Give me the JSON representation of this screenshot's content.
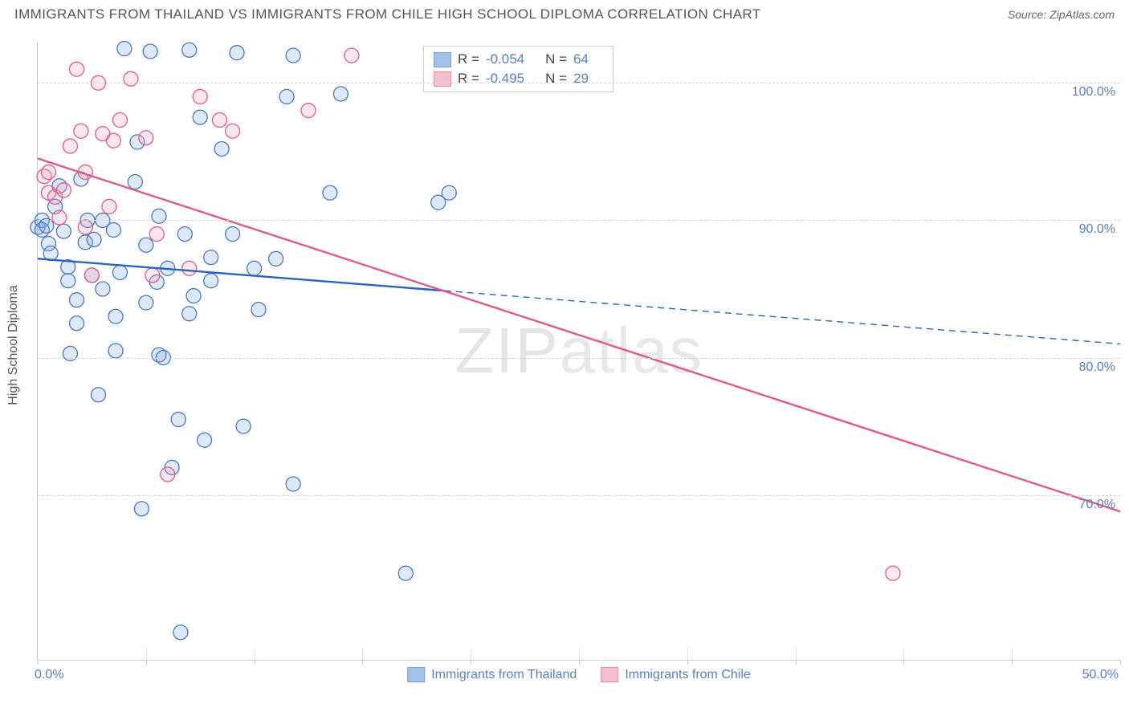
{
  "title": "IMMIGRANTS FROM THAILAND VS IMMIGRANTS FROM CHILE HIGH SCHOOL DIPLOMA CORRELATION CHART",
  "source_label": "Source: ",
  "source_name": "ZipAtlas.com",
  "y_axis_label": "High School Diploma",
  "watermark": "ZIPatlas",
  "chart": {
    "type": "scatter",
    "xlim": [
      0,
      50
    ],
    "ylim": [
      58,
      103
    ],
    "y_gridlines": [
      70,
      80,
      90,
      100
    ],
    "y_tick_labels": [
      "70.0%",
      "80.0%",
      "90.0%",
      "100.0%"
    ],
    "x_ticks_minor": [
      0,
      5,
      10,
      15,
      20,
      25,
      30,
      35,
      40,
      45,
      50
    ],
    "x_tick_labels": {
      "0": "0.0%",
      "50": "50.0%"
    },
    "grid_color": "#d5d5d5",
    "axis_color": "#cccccc",
    "tick_label_color": "#5b7fbb",
    "background_color": "#ffffff",
    "marker_radius": 9,
    "marker_stroke_width": 1.3,
    "marker_fill_opacity": 0.25,
    "line_width": 2.4
  },
  "series": [
    {
      "name": "Immigrants from Thailand",
      "fill_color": "#7da6e3",
      "stroke_color": "#4a78c2",
      "line_color": "#2b63c0",
      "R": "-0.054",
      "N": "64",
      "regression": {
        "x1": 0,
        "y1": 87.2,
        "x2": 50,
        "y2": 81.0,
        "solid_until_x": 18.8
      },
      "points": [
        [
          0.0,
          89.5
        ],
        [
          0.2,
          90.0
        ],
        [
          0.2,
          89.3
        ],
        [
          0.4,
          89.6
        ],
        [
          0.5,
          88.3
        ],
        [
          0.6,
          87.6
        ],
        [
          0.8,
          91.0
        ],
        [
          1.0,
          92.5
        ],
        [
          1.2,
          89.2
        ],
        [
          1.4,
          86.6
        ],
        [
          1.4,
          85.6
        ],
        [
          1.5,
          80.3
        ],
        [
          1.8,
          84.2
        ],
        [
          1.8,
          82.5
        ],
        [
          2.0,
          93.0
        ],
        [
          2.2,
          88.4
        ],
        [
          2.3,
          90.0
        ],
        [
          2.5,
          86.0
        ],
        [
          2.6,
          88.6
        ],
        [
          2.8,
          77.3
        ],
        [
          3.0,
          85.0
        ],
        [
          3.0,
          90.0
        ],
        [
          3.5,
          89.3
        ],
        [
          3.6,
          83.0
        ],
        [
          3.6,
          80.5
        ],
        [
          3.8,
          86.2
        ],
        [
          4.0,
          102.5
        ],
        [
          4.5,
          92.8
        ],
        [
          4.6,
          95.7
        ],
        [
          4.8,
          69.0
        ],
        [
          5.0,
          84.0
        ],
        [
          5.0,
          88.2
        ],
        [
          5.2,
          102.3
        ],
        [
          5.5,
          85.5
        ],
        [
          5.6,
          90.3
        ],
        [
          5.6,
          80.2
        ],
        [
          5.8,
          80.0
        ],
        [
          6.0,
          86.5
        ],
        [
          6.2,
          72.0
        ],
        [
          6.5,
          75.5
        ],
        [
          6.6,
          60.0
        ],
        [
          6.8,
          89.0
        ],
        [
          7.0,
          102.4
        ],
        [
          7.0,
          83.2
        ],
        [
          7.2,
          84.5
        ],
        [
          7.5,
          97.5
        ],
        [
          7.7,
          74.0
        ],
        [
          8.0,
          87.3
        ],
        [
          8.0,
          85.6
        ],
        [
          8.5,
          95.2
        ],
        [
          9.0,
          89.0
        ],
        [
          9.2,
          102.2
        ],
        [
          9.5,
          75.0
        ],
        [
          10.0,
          86.5
        ],
        [
          10.2,
          83.5
        ],
        [
          11.0,
          87.2
        ],
        [
          11.8,
          102.0
        ],
        [
          11.5,
          99.0
        ],
        [
          11.8,
          70.8
        ],
        [
          13.5,
          92.0
        ],
        [
          14.0,
          99.2
        ],
        [
          17.0,
          64.3
        ],
        [
          19.0,
          92.0
        ],
        [
          18.5,
          91.3
        ]
      ]
    },
    {
      "name": "Immigrants from Chile",
      "fill_color": "#f0a4bb",
      "stroke_color": "#e05a88",
      "line_color": "#e05a88",
      "R": "-0.495",
      "N": "29",
      "regression": {
        "x1": 0,
        "y1": 94.5,
        "x2": 50,
        "y2": 68.8,
        "solid_until_x": 50
      },
      "points": [
        [
          0.3,
          93.2
        ],
        [
          0.5,
          92.0
        ],
        [
          0.5,
          93.5
        ],
        [
          0.8,
          91.7
        ],
        [
          1.0,
          90.2
        ],
        [
          1.2,
          92.2
        ],
        [
          1.5,
          95.4
        ],
        [
          1.8,
          101.0
        ],
        [
          2.0,
          96.5
        ],
        [
          2.2,
          93.5
        ],
        [
          2.2,
          89.5
        ],
        [
          2.5,
          86.0
        ],
        [
          2.8,
          100.0
        ],
        [
          3.0,
          96.3
        ],
        [
          3.3,
          91.0
        ],
        [
          3.5,
          95.8
        ],
        [
          3.8,
          97.3
        ],
        [
          4.3,
          100.3
        ],
        [
          5.0,
          96.0
        ],
        [
          5.3,
          86.0
        ],
        [
          5.5,
          89.0
        ],
        [
          6.0,
          71.5
        ],
        [
          7.0,
          86.5
        ],
        [
          7.5,
          99.0
        ],
        [
          8.4,
          97.3
        ],
        [
          9.0,
          96.5
        ],
        [
          12.5,
          98.0
        ],
        [
          14.5,
          102.0
        ],
        [
          39.5,
          64.3
        ]
      ]
    }
  ],
  "legend_top": {
    "R_label": "R =",
    "N_label": "N ="
  },
  "legend_bottom_labels": [
    "Immigrants from Thailand",
    "Immigrants from Chile"
  ]
}
